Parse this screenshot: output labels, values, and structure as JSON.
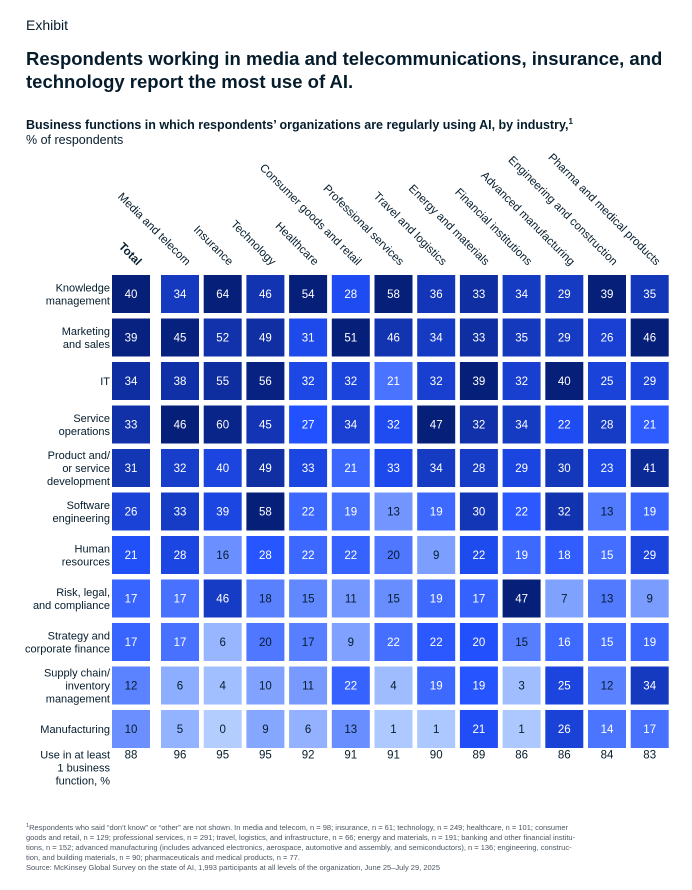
{
  "chart_data": {
    "type": "heatmap",
    "header": "Exhibit",
    "title": [
      "Respondents working in media and telecommunications, insurance, and",
      "technology report the most use of AI."
    ],
    "subtitle": "Business functions in which respondents’ organizations are regularly using AI, by industry,",
    "subtitle_marker": "1",
    "unit": "% of respondents",
    "columns": [
      "Total",
      "Media and telecom",
      "Insurance",
      "Technology",
      "Healthcare",
      "Consumer goods and retail",
      "Professional services",
      "Travel and logistics",
      "Energy and materials",
      "Financial institutions",
      "Advanced manufacturing",
      "Engineering and construction",
      "Pharma and medical products"
    ],
    "rows": [
      {
        "label": [
          "Knowledge",
          "management"
        ],
        "values": [
          40,
          34,
          64,
          46,
          54,
          28,
          58,
          36,
          33,
          34,
          29,
          39,
          35
        ]
      },
      {
        "label": [
          "Marketing",
          "and sales"
        ],
        "values": [
          39,
          45,
          52,
          49,
          31,
          51,
          46,
          34,
          33,
          35,
          29,
          26,
          46
        ]
      },
      {
        "label": [
          "IT"
        ],
        "values": [
          34,
          38,
          55,
          56,
          32,
          32,
          21,
          32,
          39,
          32,
          40,
          25,
          29
        ]
      },
      {
        "label": [
          "Service",
          "operations"
        ],
        "values": [
          33,
          46,
          60,
          45,
          27,
          34,
          32,
          47,
          32,
          34,
          22,
          28,
          21
        ]
      },
      {
        "label": [
          "Product and/",
          "or service",
          "development"
        ],
        "values": [
          31,
          32,
          40,
          49,
          33,
          21,
          33,
          34,
          28,
          29,
          30,
          23,
          41
        ]
      },
      {
        "label": [
          "Software",
          "engineering"
        ],
        "values": [
          26,
          33,
          39,
          58,
          22,
          19,
          13,
          19,
          30,
          22,
          32,
          13,
          19
        ]
      },
      {
        "label": [
          "Human",
          "resources"
        ],
        "values": [
          21,
          28,
          16,
          28,
          22,
          22,
          20,
          9,
          22,
          19,
          18,
          15,
          29
        ]
      },
      {
        "label": [
          "Risk, legal,",
          "and compliance"
        ],
        "values": [
          17,
          17,
          46,
          18,
          15,
          11,
          15,
          19,
          17,
          47,
          7,
          13,
          9
        ]
      },
      {
        "label": [
          "Strategy and",
          "corporate finance"
        ],
        "values": [
          17,
          17,
          6,
          20,
          17,
          9,
          22,
          22,
          20,
          15,
          16,
          15,
          19
        ]
      },
      {
        "label": [
          "Supply chain/",
          "inventory",
          "management"
        ],
        "values": [
          12,
          6,
          4,
          10,
          11,
          22,
          4,
          19,
          19,
          3,
          25,
          12,
          34
        ]
      },
      {
        "label": [
          "Manufacturing"
        ],
        "values": [
          10,
          5,
          0,
          9,
          6,
          13,
          1,
          1,
          21,
          1,
          26,
          14,
          17
        ]
      }
    ],
    "summary": {
      "label": [
        "Use in at least",
        "1 business",
        "function, %"
      ],
      "values": [
        88,
        96,
        95,
        95,
        92,
        91,
        91,
        90,
        89,
        86,
        86,
        84,
        83
      ]
    },
    "color_scale": [
      "#b3cdff",
      "#2251ff",
      "#061f79"
    ],
    "footnote_marker": "1",
    "footnotes": [
      "Respondents who said “don’t know” or “other” are not shown. In media and telecom, n = 98; insurance, n = 61; technology, n = 249; healthcare, n = 101; consumer",
      "goods and retail, n = 129; professional services, n = 291; travel, logistics, and infrastructure, n = 66; energy and materials, n = 191; banking and other financial institu-",
      "tions, n = 152; advanced manufacturing (includes advanced electronics, aerospace, automotive and assembly, and semiconductors), n = 136; engineering, construc-",
      "tion, and building materials, n = 90; pharmaceuticals and medical products, n = 77."
    ],
    "source": "Source: McKinsey Global Survey on the state of AI, 1,993 participants at all levels of the organization, June 25–July 29, 2025"
  }
}
